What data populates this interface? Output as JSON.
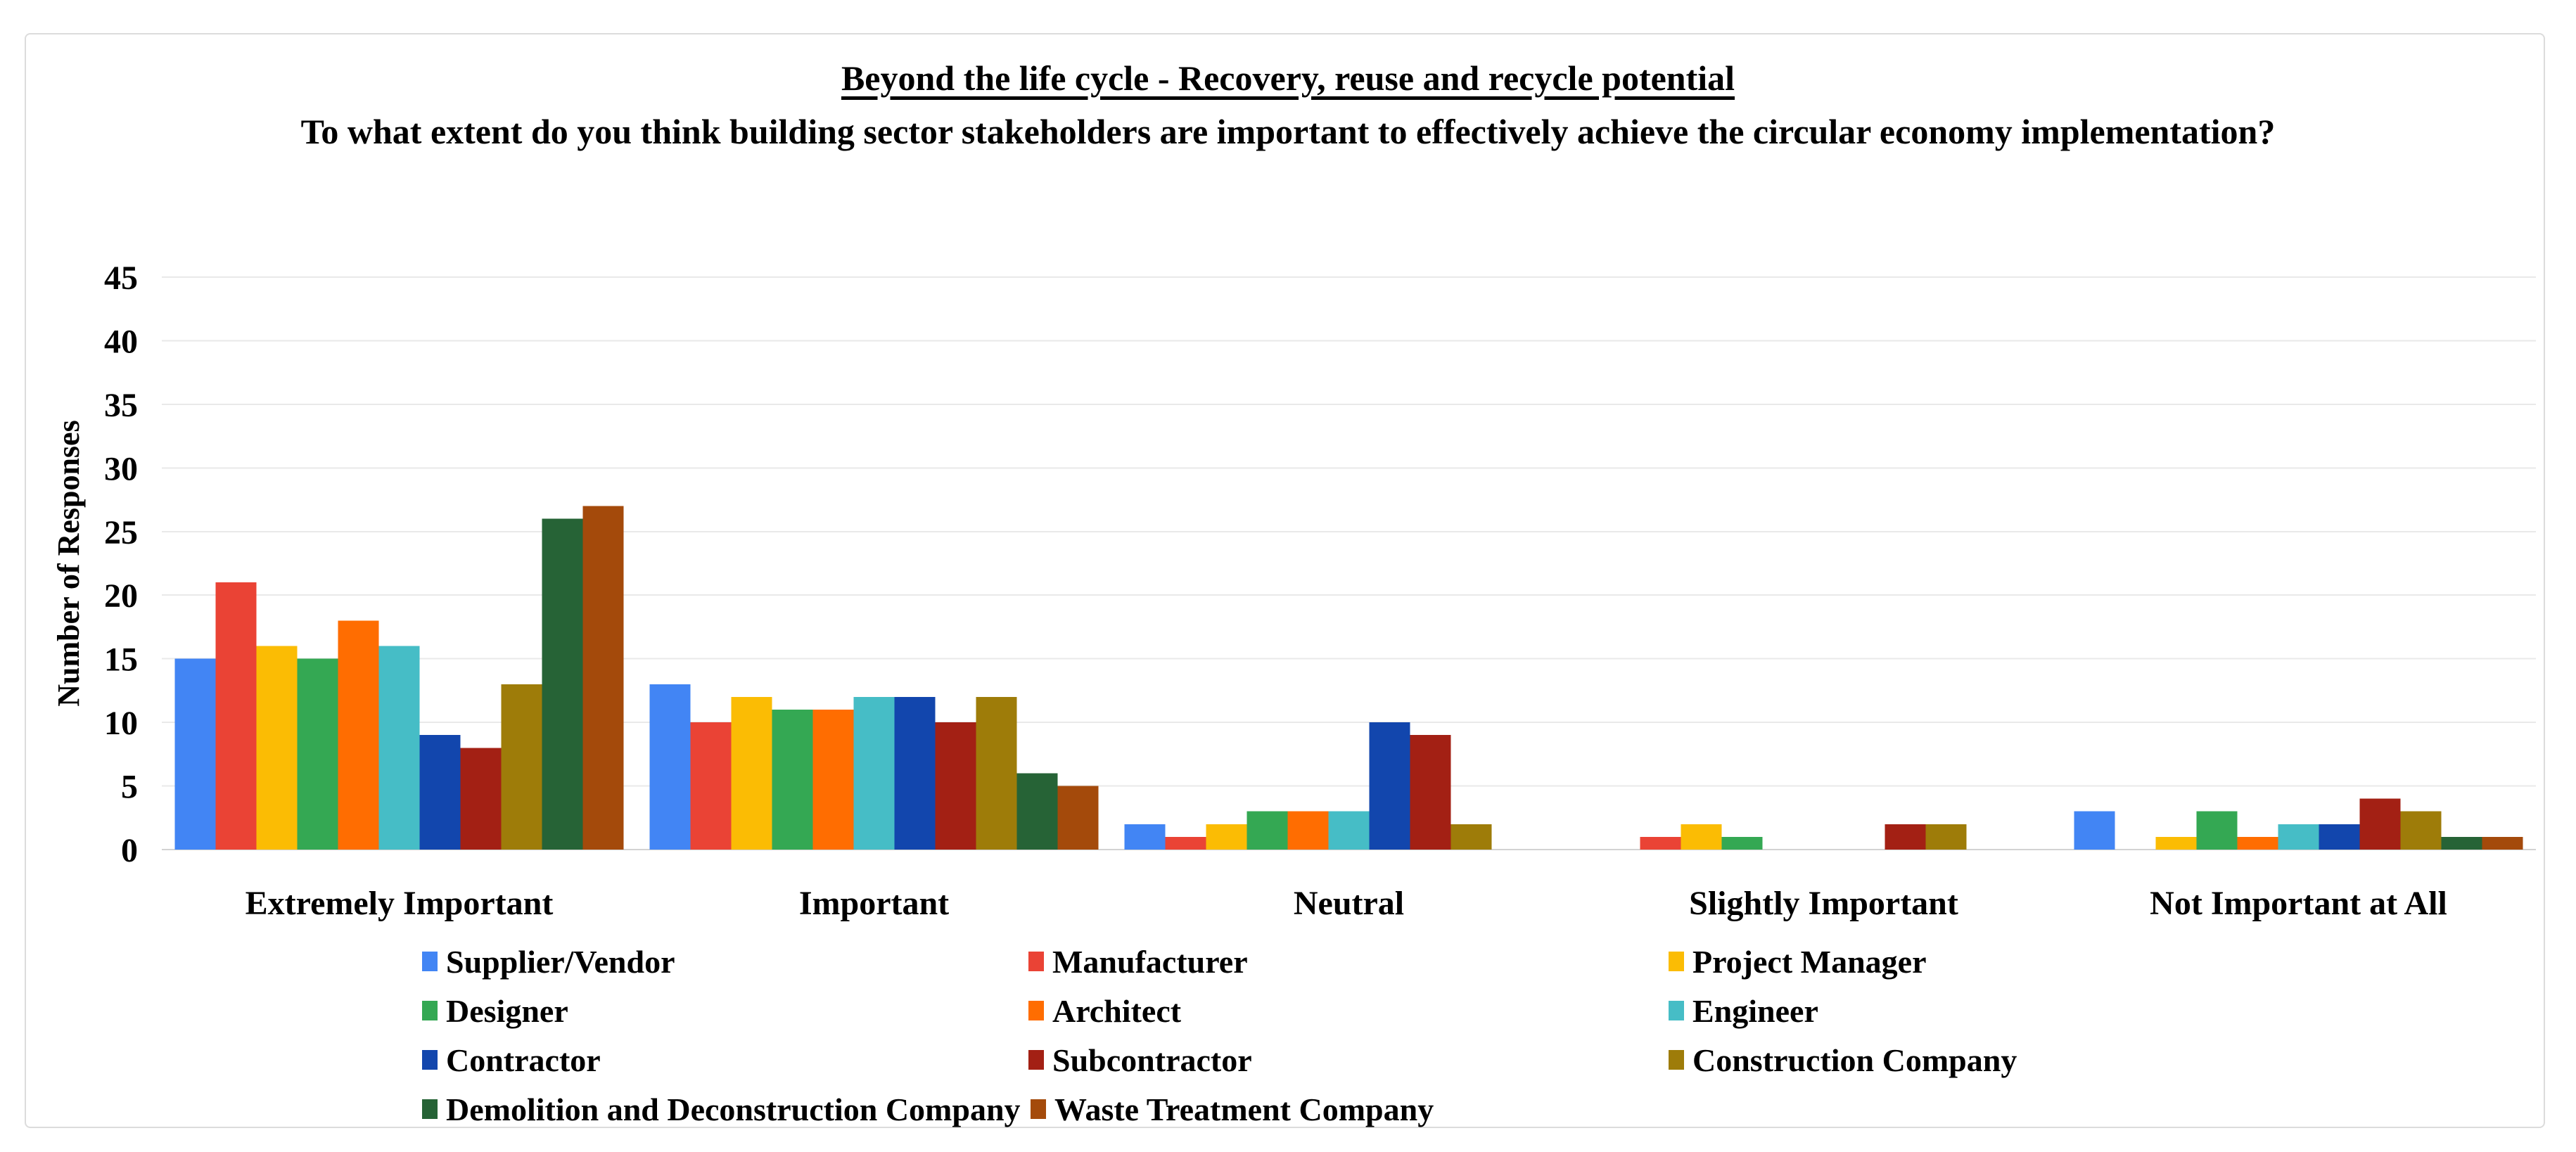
{
  "frame": {
    "background": "#ffffff",
    "border_color": "#dcdcdc"
  },
  "chart_data": {
    "type": "bar",
    "title": "Beyond the life cycle - Recovery, reuse and recycle potential",
    "title_underlined": true,
    "subtitle": "To what extent do you think building sector stakeholders are important to effectively achieve the circular economy implementation?",
    "xlabel": "",
    "ylabel": "Number of Responses",
    "ylim": [
      0,
      45
    ],
    "yticks": [
      0,
      5,
      10,
      15,
      20,
      25,
      30,
      35,
      40,
      45
    ],
    "grid": true,
    "legend_position": "bottom",
    "categories": [
      "Extremely Important",
      "Important",
      "Neutral",
      "Slightly Important",
      "Not Important at All"
    ],
    "series": [
      {
        "name": "Supplier/Vendor",
        "color": "#4285F4",
        "values": [
          15,
          13,
          2,
          0,
          3
        ]
      },
      {
        "name": "Manufacturer",
        "color": "#EA4335",
        "values": [
          21,
          10,
          1,
          1,
          0
        ]
      },
      {
        "name": "Project Manager",
        "color": "#FBBC04",
        "values": [
          16,
          12,
          2,
          2,
          1
        ]
      },
      {
        "name": "Designer",
        "color": "#34A853",
        "values": [
          15,
          11,
          3,
          1,
          3
        ]
      },
      {
        "name": "Architect",
        "color": "#FF6D01",
        "values": [
          18,
          11,
          3,
          0,
          1
        ]
      },
      {
        "name": "Engineer",
        "color": "#46BDC6",
        "values": [
          16,
          12,
          3,
          0,
          2
        ]
      },
      {
        "name": "Contractor",
        "color": "#1246AD",
        "values": [
          9,
          12,
          10,
          0,
          2
        ]
      },
      {
        "name": "Subcontractor",
        "color": "#A32014",
        "values": [
          8,
          10,
          9,
          2,
          4
        ]
      },
      {
        "name": "Construction Company",
        "color": "#9E7C09",
        "values": [
          13,
          12,
          2,
          2,
          3
        ]
      },
      {
        "name": "Demolition and Deconstruction Company",
        "color": "#266336",
        "values": [
          26,
          6,
          0,
          0,
          1
        ]
      },
      {
        "name": "Waste Treatment Company",
        "color": "#A44A0B",
        "values": [
          27,
          5,
          0,
          0,
          1
        ]
      }
    ],
    "colors": {
      "gridline": "#e9e9e9",
      "axis_line": "#d3d3d3",
      "text": "#000000"
    }
  }
}
